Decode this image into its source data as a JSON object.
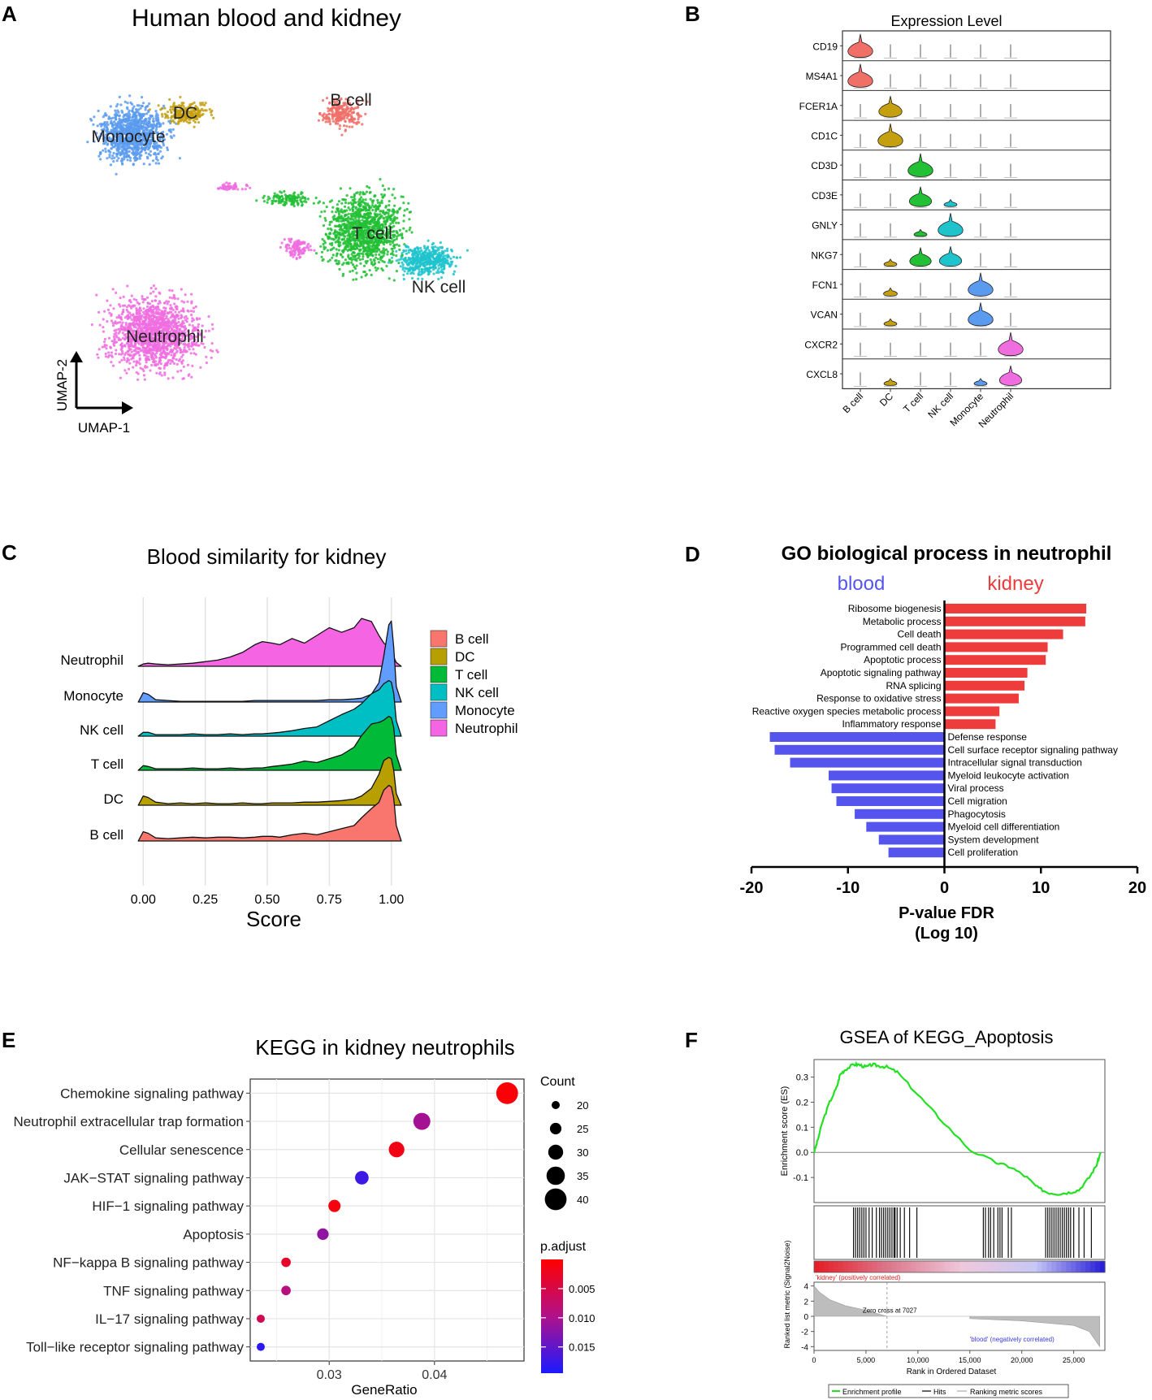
{
  "panel_labels": [
    "A",
    "B",
    "C",
    "D",
    "E",
    "F"
  ],
  "chart_data": [
    {
      "id": "A",
      "type": "scatter",
      "title": "Human blood and kidney",
      "xlabel": "UMAP-1",
      "ylabel": "UMAP-2",
      "clusters": [
        {
          "name": "Monocyte",
          "color": "#5b9bef"
        },
        {
          "name": "DC",
          "color": "#c4a011"
        },
        {
          "name": "B cell",
          "color": "#f07068"
        },
        {
          "name": "T cell",
          "color": "#22c035"
        },
        {
          "name": "NK cell",
          "color": "#1fc3cc"
        },
        {
          "name": "Neutrophil",
          "color": "#f06de0"
        }
      ]
    },
    {
      "id": "B",
      "type": "violin",
      "title": "Expression Level",
      "genes": [
        "CD19",
        "MS4A1",
        "FCER1A",
        "CD1C",
        "CD3D",
        "CD3E",
        "GNLY",
        "NKG7",
        "FCN1",
        "VCAN",
        "CXCR2",
        "CXCL8"
      ],
      "cell_types": [
        "B cell",
        "DC",
        "T cell",
        "NK cell",
        "Monocyte",
        "Neutrophil"
      ],
      "colors": [
        "#f07068",
        "#c4a011",
        "#22c035",
        "#1fc3cc",
        "#5b9bef",
        "#f06de0"
      ],
      "expression": [
        [
          1.0,
          0,
          0,
          0,
          0,
          0
        ],
        [
          1.0,
          0,
          0,
          0,
          0,
          0
        ],
        [
          0,
          0.9,
          0,
          0,
          0,
          0
        ],
        [
          0,
          1.0,
          0,
          0,
          0,
          0
        ],
        [
          0,
          0,
          1.0,
          0,
          0,
          0
        ],
        [
          0,
          0,
          0.85,
          0.3,
          0,
          0
        ],
        [
          0,
          0,
          0.3,
          1.0,
          0,
          0
        ],
        [
          0,
          0.3,
          0.8,
          0.85,
          0,
          0
        ],
        [
          0,
          0.35,
          0,
          0,
          1.0,
          0
        ],
        [
          0,
          0.3,
          0,
          0,
          1.0,
          0
        ],
        [
          0,
          0,
          0,
          0,
          0,
          1.0
        ],
        [
          0,
          0.3,
          0,
          0,
          0.3,
          0.85
        ]
      ]
    },
    {
      "id": "C",
      "type": "area",
      "title": "Blood similarity for kidney",
      "xlabel": "Score",
      "x_ticks": [
        "0.00",
        "0.25",
        "0.50",
        "0.75",
        "1.00"
      ],
      "xlim": [
        -0.06,
        1.06
      ],
      "rows": [
        "Neutrophil",
        "Monocyte",
        "NK cell",
        "T cell",
        "DC",
        "B cell"
      ],
      "legend": [
        "B cell",
        "DC",
        "T cell",
        "NK cell",
        "Monocyte",
        "Neutrophil"
      ],
      "colors": {
        "B cell": "#f8766d",
        "DC": "#b79f00",
        "T cell": "#00ba38",
        "NK cell": "#00bfc4",
        "Monocyte": "#619cff",
        "Neutrophil": "#f564e3"
      },
      "density_x": [
        -0.02,
        0.0,
        0.02,
        0.05,
        0.1,
        0.15,
        0.2,
        0.25,
        0.3,
        0.35,
        0.4,
        0.45,
        0.48,
        0.52,
        0.55,
        0.6,
        0.65,
        0.7,
        0.75,
        0.8,
        0.85,
        0.88,
        0.92,
        0.95,
        0.97,
        0.99,
        1.0,
        1.01,
        1.02,
        1.04
      ],
      "densities": {
        "Neutrophil": [
          0.0,
          0.03,
          0.04,
          0.03,
          0.02,
          0.03,
          0.04,
          0.06,
          0.08,
          0.12,
          0.18,
          0.28,
          0.32,
          0.3,
          0.28,
          0.36,
          0.3,
          0.4,
          0.5,
          0.44,
          0.5,
          0.62,
          0.58,
          0.4,
          0.3,
          0.25,
          0.2,
          0.12,
          0.05,
          0.0
        ],
        "Monocyte": [
          0.0,
          0.12,
          0.1,
          0.03,
          0.02,
          0.01,
          0.01,
          0.01,
          0.01,
          0.01,
          0.01,
          0.02,
          0.02,
          0.02,
          0.02,
          0.02,
          0.02,
          0.02,
          0.03,
          0.03,
          0.04,
          0.05,
          0.1,
          0.25,
          0.6,
          1.0,
          1.05,
          0.7,
          0.2,
          0.0
        ],
        "NK cell": [
          0.0,
          0.05,
          0.05,
          0.02,
          0.02,
          0.02,
          0.03,
          0.02,
          0.02,
          0.03,
          0.02,
          0.03,
          0.03,
          0.04,
          0.05,
          0.07,
          0.1,
          0.12,
          0.2,
          0.28,
          0.35,
          0.42,
          0.55,
          0.6,
          0.68,
          0.72,
          0.7,
          0.55,
          0.2,
          0.0
        ],
        "T cell": [
          0.0,
          0.06,
          0.05,
          0.02,
          0.02,
          0.02,
          0.03,
          0.02,
          0.02,
          0.03,
          0.02,
          0.03,
          0.03,
          0.05,
          0.06,
          0.08,
          0.12,
          0.1,
          0.15,
          0.2,
          0.3,
          0.45,
          0.6,
          0.62,
          0.65,
          0.7,
          0.68,
          0.55,
          0.2,
          0.0
        ],
        "DC": [
          0.0,
          0.12,
          0.1,
          0.04,
          0.02,
          0.03,
          0.02,
          0.03,
          0.02,
          0.02,
          0.03,
          0.02,
          0.02,
          0.03,
          0.03,
          0.03,
          0.04,
          0.04,
          0.05,
          0.06,
          0.08,
          0.12,
          0.22,
          0.4,
          0.58,
          0.62,
          0.6,
          0.45,
          0.15,
          0.0
        ],
        "B cell": [
          0.0,
          0.12,
          0.1,
          0.04,
          0.03,
          0.04,
          0.05,
          0.04,
          0.05,
          0.05,
          0.04,
          0.05,
          0.06,
          0.06,
          0.05,
          0.08,
          0.1,
          0.08,
          0.12,
          0.16,
          0.2,
          0.3,
          0.42,
          0.5,
          0.66,
          0.72,
          0.7,
          0.55,
          0.2,
          0.0
        ]
      }
    },
    {
      "id": "D",
      "type": "bar",
      "title": "GO biological process in neutrophil",
      "left_label": "blood",
      "right_label": "kidney",
      "left_color": "#5555ee",
      "right_color": "#ee3b3b",
      "xlabel": "P-value FDR",
      "xlabel2": "(Log 10)",
      "xlim": [
        -20,
        20
      ],
      "x_ticks": [
        "-20",
        "-10",
        "0",
        "10",
        "20"
      ],
      "categories": [
        "Ribosome biogenesis",
        "Metabolic process",
        "Cell death",
        "Programmed cell death",
        "Apoptotic process",
        "Apoptotic signaling pathway",
        "RNA splicing",
        "Response to oxidative stress",
        "Reactive oxygen species metabolic process",
        "Inflammatory response",
        "Defense response",
        "Cell surface receptor signaling pathway",
        "Intracellular signal transduction",
        "Myeloid leukocyte activation",
        "Viral process",
        "Cell migration",
        "Phagocytosis",
        "Myeloid cell differentiation",
        "System development",
        "Cell proliferation"
      ],
      "values": [
        14.7,
        14.6,
        12.3,
        10.7,
        10.5,
        8.6,
        8.3,
        7.7,
        5.7,
        5.3,
        -18.1,
        -17.6,
        -16.0,
        -12.0,
        -11.7,
        -11.2,
        -9.3,
        -8.1,
        -6.8,
        -5.8
      ]
    },
    {
      "id": "E",
      "type": "scatter",
      "title": "KEGG in kidney neutrophils",
      "xlabel": "GeneRatio",
      "x_ticks": [
        "0.03",
        "0.04"
      ],
      "xlim": [
        0.0225,
        0.0485
      ],
      "categories": [
        "Chemokine signaling pathway",
        "Neutrophil extracellular trap formation",
        "Cellular senescence",
        "JAK−STAT signaling pathway",
        "HIF−1 signaling pathway",
        "Apoptosis",
        "NF−kappa B signaling pathway",
        "TNF signaling pathway",
        "IL−17 signaling pathway",
        "Toll−like receptor signaling pathway"
      ],
      "gene_ratio": [
        0.0469,
        0.0388,
        0.0364,
        0.0331,
        0.0305,
        0.0294,
        0.0259,
        0.0259,
        0.0235,
        0.0235
      ],
      "count": [
        40,
        33,
        31,
        28,
        26,
        25,
        22,
        22,
        20,
        20
      ],
      "p_adjust": [
        0.0005,
        0.0105,
        0.0015,
        0.0172,
        0.001,
        0.0118,
        0.003,
        0.009,
        0.006,
        0.0182
      ],
      "size_legend_title": "Count",
      "size_legend": [
        20,
        25,
        30,
        35,
        40
      ],
      "color_legend_title": "p.adjust",
      "color_legend_ticks": [
        "0.005",
        "0.010",
        "0.015"
      ],
      "color_range": [
        0.0,
        0.0195
      ]
    },
    {
      "id": "F",
      "type": "line",
      "title": "GSEA of KEGG_Apoptosis",
      "ylabel": "Enrichment score (ES)",
      "ylabel2": "Ranked list metric (Signal2Noise)",
      "xlabel": "Rank in Ordered Dataset",
      "x_ticks": [
        "0",
        "5,000",
        "10,000",
        "15,000",
        "20,000",
        "25,000"
      ],
      "x_tick_values": [
        0,
        5000,
        10000,
        15000,
        20000,
        25000
      ],
      "y_ticks": [
        "0.3",
        "0.2",
        "0.1",
        "0.0",
        "-0.1"
      ],
      "y_tick_values": [
        0.3,
        0.2,
        0.1,
        0.0,
        -0.1
      ],
      "y2_ticks": [
        "4",
        "2",
        "0",
        "-2",
        "-4"
      ],
      "y2_tick_values": [
        4,
        2,
        0,
        -2,
        -4
      ],
      "xlim": [
        0,
        28000
      ],
      "ylim": [
        -0.2,
        0.37
      ],
      "rank": [
        0,
        300,
        800,
        1500,
        2200,
        2500,
        3000,
        3800,
        4300,
        5000,
        5600,
        6200,
        7000,
        8000,
        10000,
        12000,
        15000,
        17500,
        19000,
        20500,
        21500,
        22500,
        23500,
        24500,
        25500,
        26500,
        27200,
        27600
      ],
      "es": [
        0.0,
        0.04,
        0.12,
        0.2,
        0.26,
        0.31,
        0.33,
        0.35,
        0.35,
        0.34,
        0.35,
        0.345,
        0.34,
        0.32,
        0.23,
        0.14,
        0.01,
        -0.04,
        -0.06,
        -0.1,
        -0.14,
        -0.16,
        -0.165,
        -0.16,
        -0.15,
        -0.1,
        -0.05,
        0.0
      ],
      "hits": [
        3800,
        4000,
        4200,
        4400,
        4600,
        4800,
        5000,
        5300,
        5600,
        6000,
        6300,
        6500,
        6700,
        6900,
        7100,
        7300,
        7500,
        7700,
        7800,
        8000,
        8300,
        8700,
        9200,
        9900,
        16300,
        16500,
        16800,
        17000,
        17300,
        17700,
        17900,
        18100,
        18700,
        19000,
        22300,
        22500,
        22700,
        22900,
        23100,
        23300,
        23500,
        23700,
        23900,
        24100,
        24300,
        24500,
        24700,
        25000,
        25500,
        26000,
        26700
      ],
      "pos_label": "'kidney' (positively correlated)",
      "neg_label": "'blood' (negatively correlated)",
      "zero_cross_label": "Zero cross at 7027",
      "zero_cross": 7027,
      "metric_rank": [
        0,
        500,
        1500,
        3000,
        5000,
        7027,
        7027,
        15000,
        15000,
        20000,
        25000,
        26500,
        27500
      ],
      "metric_value": [
        4.0,
        3.2,
        2.2,
        1.4,
        0.8,
        0.0,
        0.0,
        0.0,
        -0.3,
        -0.6,
        -1.2,
        -2.0,
        -4.0
      ],
      "legend": [
        "Enrichment profile",
        "Hits",
        "Ranking metric scores"
      ]
    }
  ]
}
